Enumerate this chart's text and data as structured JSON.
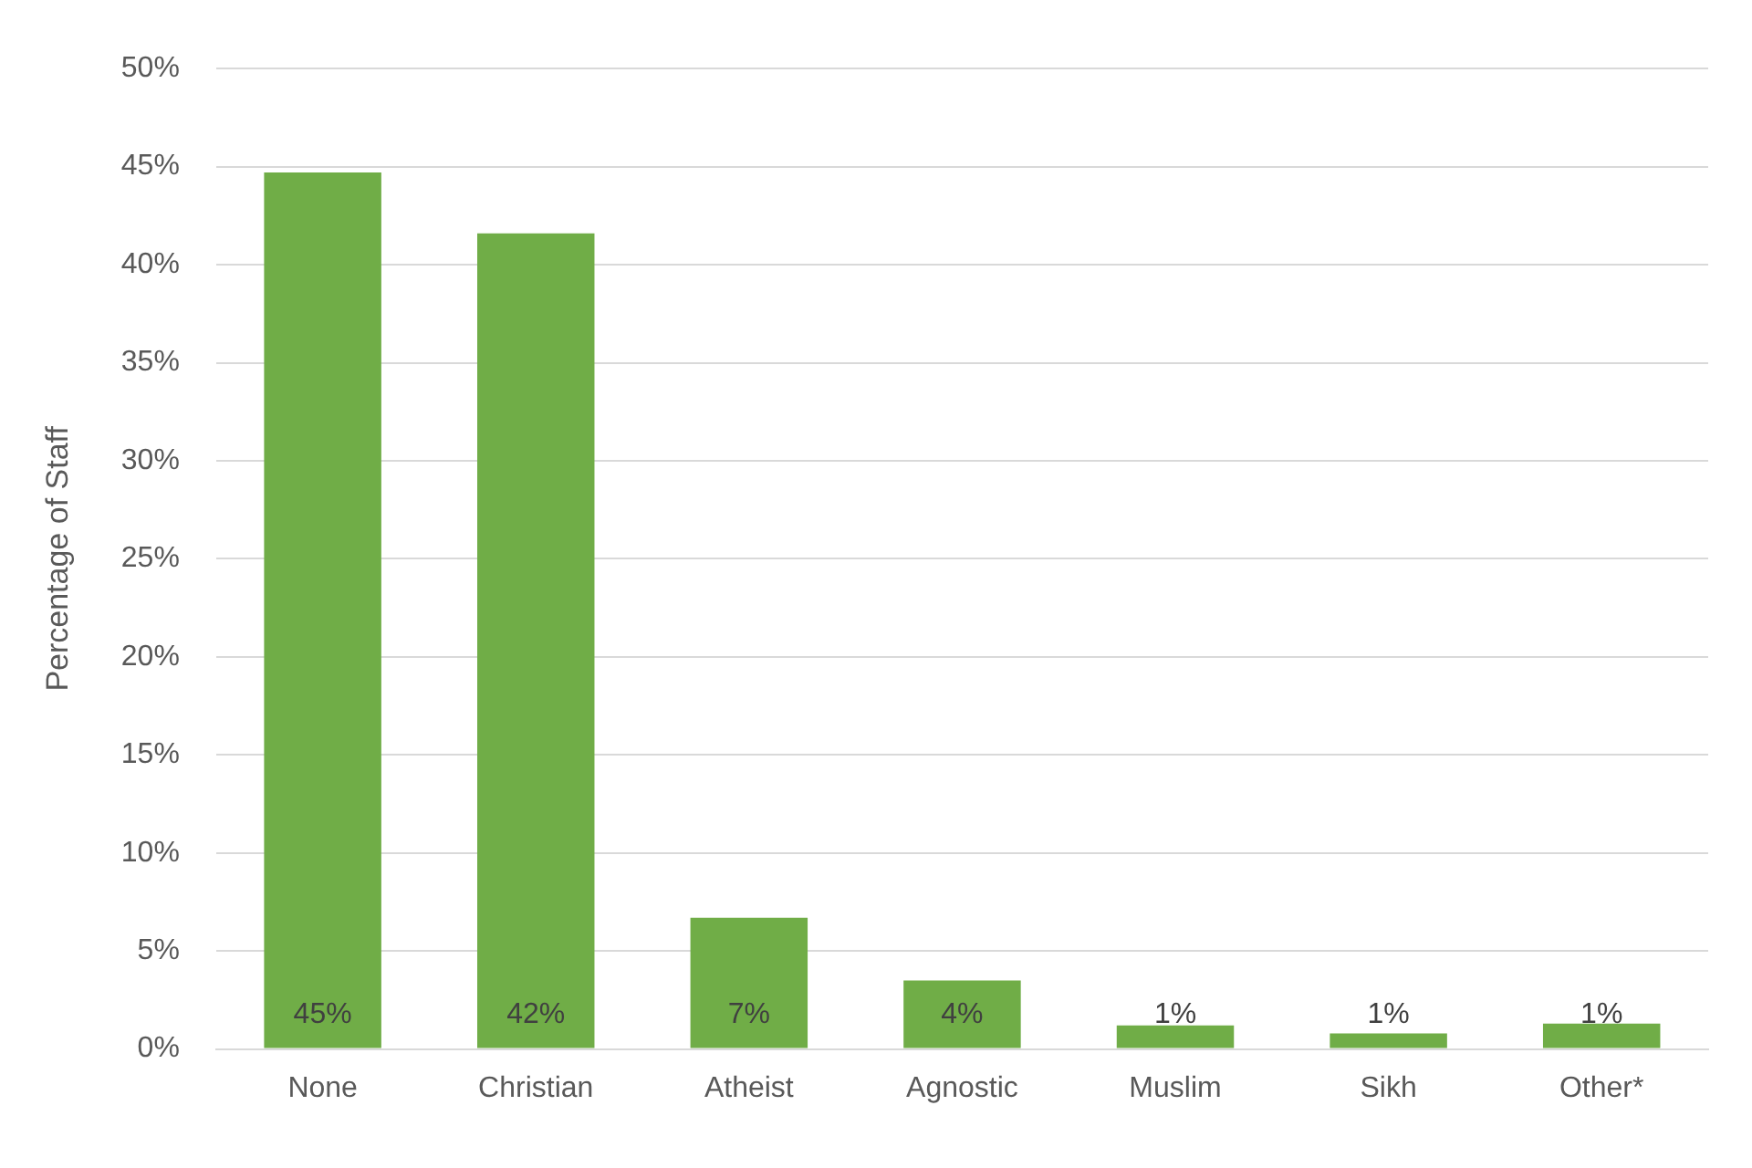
{
  "chart_data": {
    "type": "bar",
    "ylabel": "Percentage of Staff",
    "categories": [
      "None",
      "Christian",
      "Atheist",
      "Agnostic",
      "Muslim",
      "Sikh",
      "Other*"
    ],
    "values": [
      44.7,
      41.6,
      6.7,
      3.5,
      1.2,
      0.8,
      1.3
    ],
    "value_labels": [
      "45%",
      "42%",
      "7%",
      "4%",
      "1%",
      "1%",
      "1%"
    ],
    "color": "#70ad47",
    "ylim": [
      0,
      50
    ],
    "yticks": [
      {
        "value": 0,
        "label": "0%"
      },
      {
        "value": 5,
        "label": "5%"
      },
      {
        "value": 10,
        "label": "10%"
      },
      {
        "value": 15,
        "label": "15%"
      },
      {
        "value": 20,
        "label": "20%"
      },
      {
        "value": 25,
        "label": "25%"
      },
      {
        "value": 30,
        "label": "30%"
      },
      {
        "value": 35,
        "label": "35%"
      },
      {
        "value": 40,
        "label": "40%"
      },
      {
        "value": 45,
        "label": "45%"
      },
      {
        "value": 50,
        "label": "50%"
      }
    ],
    "grid": "y",
    "legend": false
  }
}
